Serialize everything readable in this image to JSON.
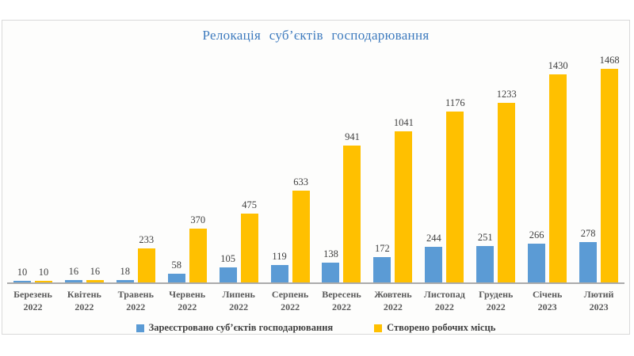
{
  "chart_data": {
    "type": "bar",
    "title": "Релокація суб’єктів господарювання",
    "categories": [
      {
        "month": "Березень",
        "year": "2022"
      },
      {
        "month": "Квітень",
        "year": "2022"
      },
      {
        "month": "Травень",
        "year": "2022"
      },
      {
        "month": "Червень",
        "year": "2022"
      },
      {
        "month": "Липень",
        "year": "2022"
      },
      {
        "month": "Серпень",
        "year": "2022"
      },
      {
        "month": "Вересень",
        "year": "2022"
      },
      {
        "month": "Жовтень",
        "year": "2022"
      },
      {
        "month": "Листопад",
        "year": "2022"
      },
      {
        "month": "Грудень",
        "year": "2022"
      },
      {
        "month": "Січень",
        "year": "2023"
      },
      {
        "month": "Лютий",
        "year": "2023"
      }
    ],
    "series": [
      {
        "name": "Зареєстровано суб’єктів господарювання",
        "color": "#5B9BD5",
        "values": [
          10,
          16,
          18,
          58,
          105,
          119,
          138,
          172,
          244,
          251,
          266,
          278
        ]
      },
      {
        "name": "Створено робочих місць",
        "color": "#FFC000",
        "values": [
          10,
          16,
          233,
          370,
          475,
          633,
          941,
          1041,
          1176,
          1233,
          1430,
          1468
        ]
      }
    ],
    "ylim": [
      0,
      1468
    ],
    "grid": false,
    "legend_position": "bottom",
    "value_labels": true
  },
  "colors": {
    "title": "#3E7BBE",
    "value_label": "#3F3F3F",
    "axis_label": "#595959",
    "axis_line": "#ABABAB",
    "frame_border": "#D9D9D9",
    "background": "#FDFDFC"
  }
}
